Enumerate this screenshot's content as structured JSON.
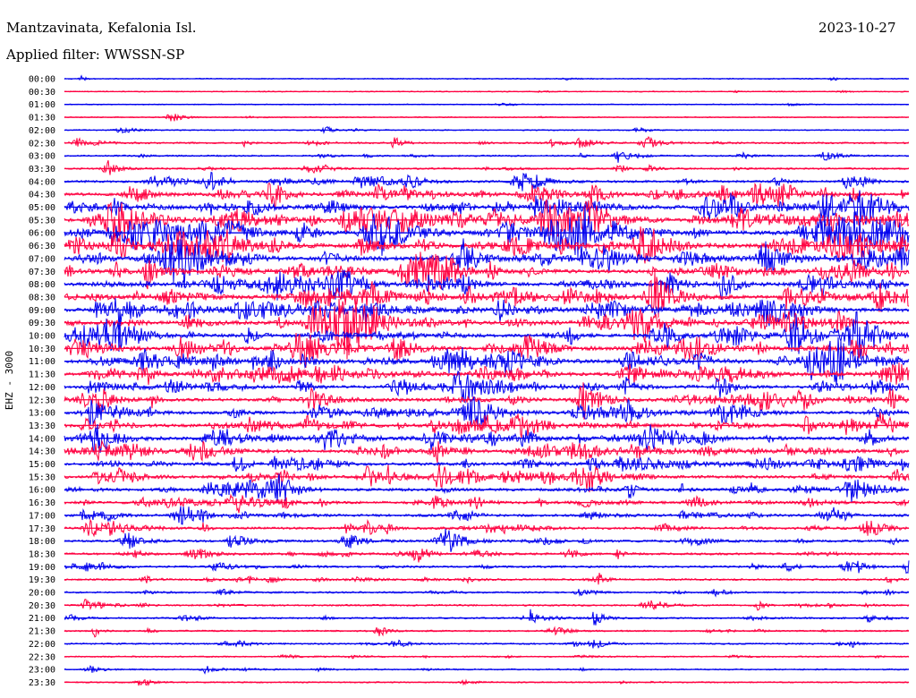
{
  "header": {
    "station": "Mantzavinata, Kefalonia Isl.",
    "date": "2023-10-27",
    "filter": "Applied filter: WWSSN-SP"
  },
  "chart_data": {
    "type": "helicorder",
    "channel_label": "EHZ - 3000",
    "colors": [
      "#0000ee",
      "#ff0040"
    ],
    "row_labels": [
      "00:00",
      "00:30",
      "01:00",
      "01:30",
      "02:00",
      "02:30",
      "03:00",
      "03:30",
      "04:00",
      "04:30",
      "05:00",
      "05:30",
      "06:00",
      "06:30",
      "07:00",
      "07:30",
      "08:00",
      "08:30",
      "09:00",
      "09:30",
      "10:00",
      "10:30",
      "11:00",
      "11:30",
      "12:00",
      "12:30",
      "13:00",
      "13:30",
      "14:00",
      "14:30",
      "15:00",
      "15:30",
      "16:00",
      "16:30",
      "17:00",
      "17:30",
      "18:00",
      "18:30",
      "19:00",
      "19:30",
      "20:00",
      "20:30",
      "21:00",
      "21:30",
      "22:00",
      "22:30",
      "23:00",
      "23:30"
    ],
    "activity_level": [
      0.05,
      0.04,
      0.03,
      0.04,
      0.08,
      0.25,
      0.2,
      0.25,
      0.45,
      0.65,
      0.85,
      0.95,
      1.0,
      1.0,
      0.9,
      0.85,
      0.8,
      0.8,
      0.85,
      0.8,
      0.75,
      0.75,
      0.8,
      0.75,
      0.7,
      0.7,
      0.7,
      0.75,
      0.7,
      0.65,
      0.65,
      0.6,
      0.6,
      0.55,
      0.5,
      0.45,
      0.45,
      0.4,
      0.35,
      0.3,
      0.25,
      0.25,
      0.25,
      0.2,
      0.2,
      0.15,
      0.15,
      0.12
    ]
  }
}
